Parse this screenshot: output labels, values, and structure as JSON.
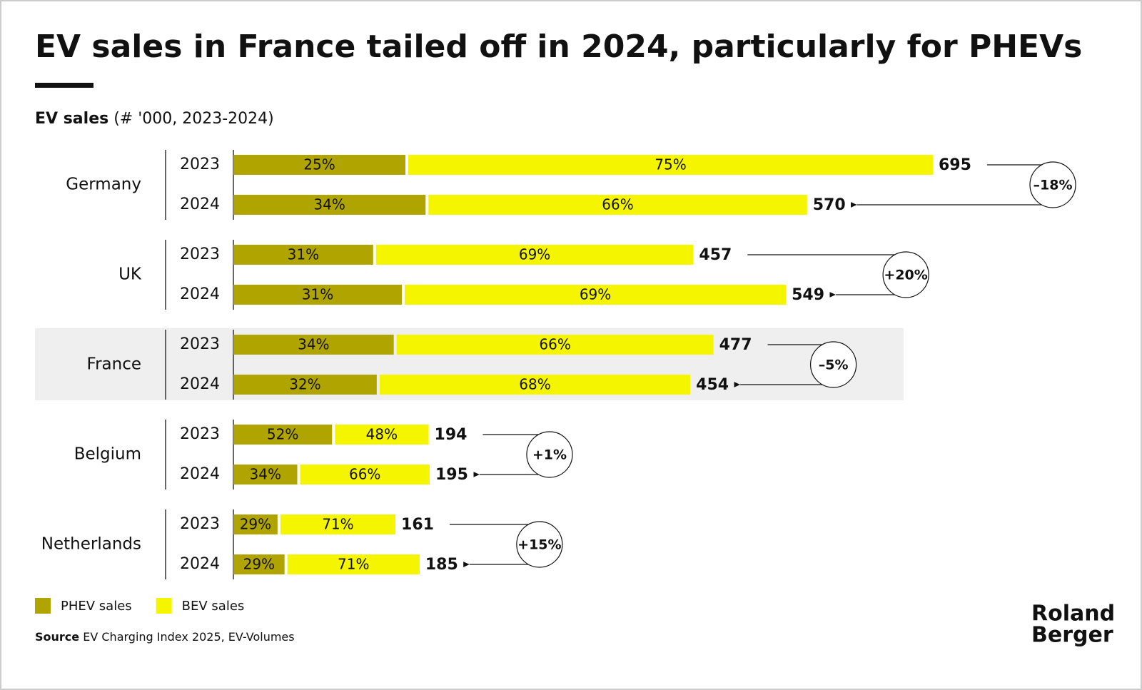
{
  "chart_data": {
    "type": "bar",
    "title": "EV sales in France tailed off in 2024, particularly for PHEVs",
    "subtitle_bold": "EV sales",
    "subtitle": "(# '000, 2023-2024)",
    "categories": [
      "Germany",
      "UK",
      "France",
      "Belgium",
      "Netherlands"
    ],
    "years": [
      "2023",
      "2024"
    ],
    "highlight": 2,
    "totals": [
      [
        695,
        570
      ],
      [
        457,
        549
      ],
      [
        477,
        454
      ],
      [
        194,
        195
      ],
      [
        161,
        185
      ]
    ],
    "series": [
      {
        "name": "PHEV sales",
        "color": "#b0a400",
        "values": [
          [
            25,
            34
          ],
          [
            31,
            31
          ],
          [
            34,
            32
          ],
          [
            52,
            34
          ],
          [
            29,
            29
          ]
        ],
        "value_labels": [
          [
            "25%",
            "34%"
          ],
          [
            "31%",
            "31%"
          ],
          [
            "34%",
            "32%"
          ],
          [
            "52%",
            "34%"
          ],
          [
            "29%",
            "29%"
          ]
        ]
      },
      {
        "name": "BEV sales",
        "color": "#f5f500",
        "values": [
          [
            75,
            66
          ],
          [
            69,
            69
          ],
          [
            66,
            68
          ],
          [
            48,
            66
          ],
          [
            71,
            71
          ]
        ],
        "value_labels": [
          [
            "75%",
            "66%"
          ],
          [
            "69%",
            "69%"
          ],
          [
            "66%",
            "68%"
          ],
          [
            "48%",
            "66%"
          ],
          [
            "71%",
            "71%"
          ]
        ]
      }
    ],
    "changes": [
      -18,
      20,
      -5,
      1,
      15
    ],
    "change_labels": [
      "–18%",
      "+20%",
      "–5%",
      "+1%",
      "+15%"
    ],
    "source_label": "Source",
    "source": "EV Charging Index 2025, EV-Volumes",
    "logo": [
      "Roland",
      "Berger"
    ]
  }
}
